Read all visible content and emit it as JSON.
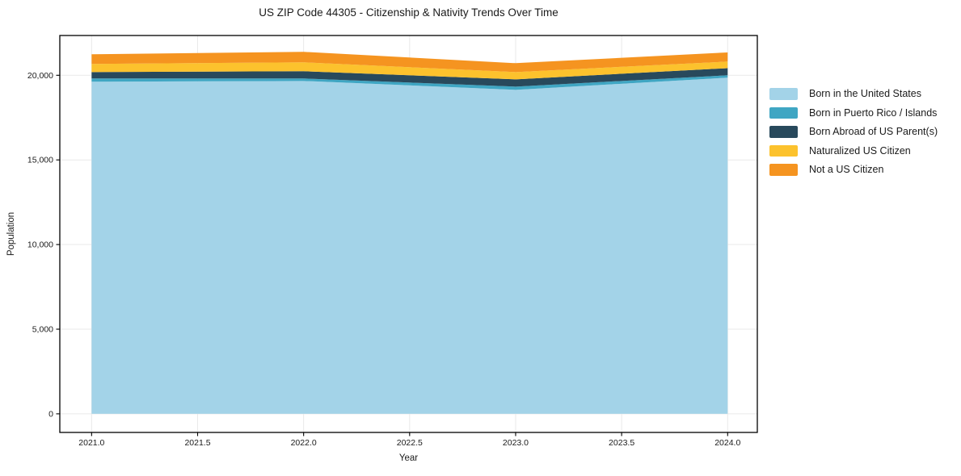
{
  "chart_data": {
    "type": "area",
    "stacked": true,
    "title": "US ZIP Code 44305 - Citizenship & Nativity Trends Over Time",
    "xlabel": "Year",
    "ylabel": "Population",
    "x": [
      2021,
      2022,
      2023,
      2024
    ],
    "series": [
      {
        "name": "Born in the United States",
        "color": "#A3D3E8",
        "values": [
          19620,
          19665,
          19140,
          19860
        ]
      },
      {
        "name": "Born in Puerto Rico / Islands",
        "color": "#3FA6C3",
        "values": [
          190,
          145,
          190,
          140
        ]
      },
      {
        "name": "Born Abroad of US Parent(s)",
        "color": "#28495C",
        "values": [
          380,
          430,
          430,
          420
        ]
      },
      {
        "name": "Naturalized US Citizen",
        "color": "#FCC22D",
        "values": [
          480,
          525,
          430,
          390
        ]
      },
      {
        "name": "Not a US Citizen",
        "color": "#F59420",
        "values": [
          570,
          620,
          525,
          540
        ]
      }
    ],
    "xlim": [
      2020.85,
      2024.14
    ],
    "ylim": [
      -1100,
      22350
    ],
    "xticks": {
      "values": [
        2021.0,
        2021.5,
        2022.0,
        2022.5,
        2023.0,
        2023.5,
        2024.0
      ],
      "labels": [
        "2021.0",
        "2021.5",
        "2022.0",
        "2022.5",
        "2023.0",
        "2023.5",
        "2024.0"
      ]
    },
    "yticks": {
      "values": [
        0,
        5000,
        10000,
        15000,
        20000
      ],
      "labels": [
        "0",
        "5,000",
        "10,000",
        "15,000",
        "20,000"
      ]
    },
    "grid": true,
    "legend_position": "right",
    "grid_color": "#e9e9e9",
    "spine_color": "#000000",
    "text_color": "#1a1a1a"
  }
}
